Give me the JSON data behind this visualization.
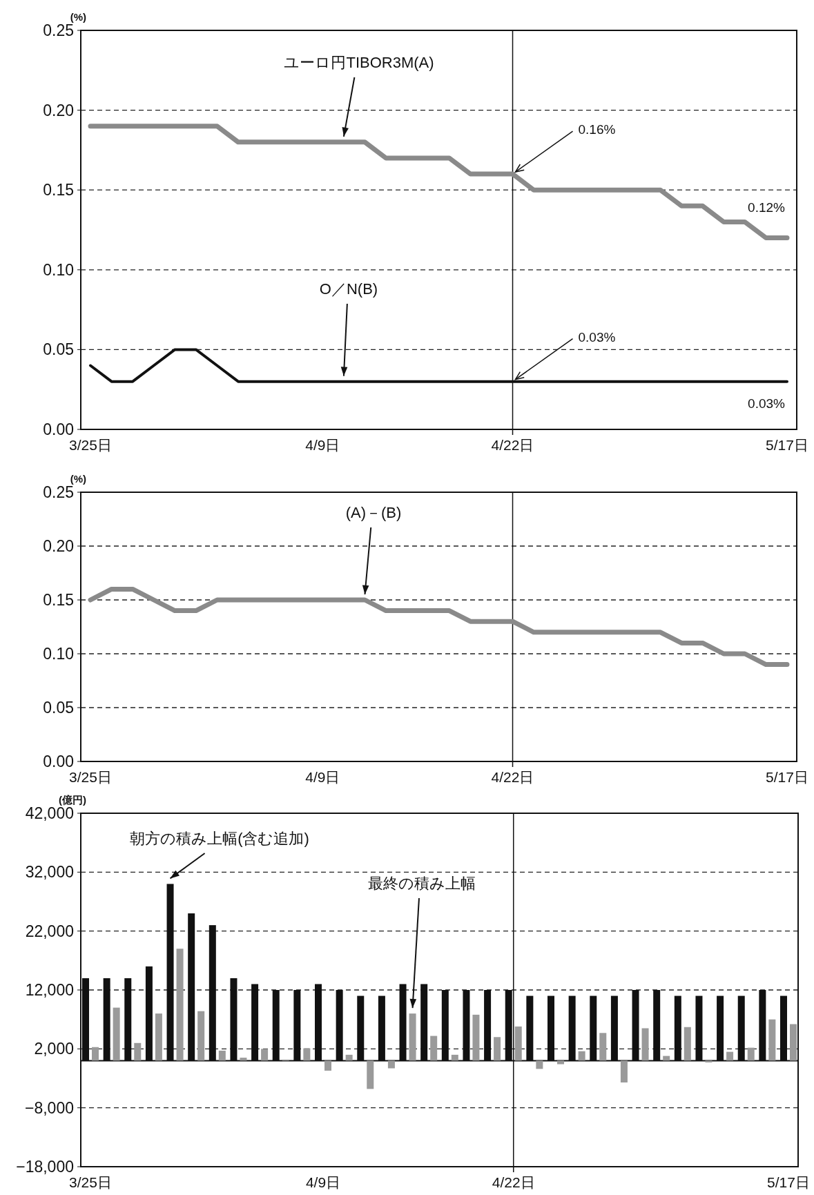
{
  "chart_data": [
    {
      "type": "line",
      "ylabel": "(%)",
      "categories": [
        "3/25日",
        null,
        null,
        null,
        null,
        null,
        null,
        null,
        null,
        null,
        null,
        "4/9日",
        null,
        null,
        null,
        null,
        null,
        null,
        null,
        null,
        "4/22日",
        null,
        null,
        null,
        null,
        null,
        null,
        null,
        null,
        null,
        null,
        null,
        null,
        "5/17日"
      ],
      "ylim": [
        0,
        0.25
      ],
      "yticks": [
        {
          "value": 0,
          "label": "0.00"
        },
        {
          "value": 0.05,
          "label": "0.05"
        },
        {
          "value": 0.1,
          "label": "0.10"
        },
        {
          "value": 0.15,
          "label": "0.15"
        },
        {
          "value": 0.2,
          "label": "0.20"
        },
        {
          "value": 0.25,
          "label": "0.25"
        }
      ],
      "grid": "y",
      "series": [
        {
          "name": "ユーロ円TIBOR3M(A)",
          "color": "#8a8a8a",
          "values": [
            0.19,
            0.19,
            0.19,
            0.19,
            0.19,
            0.19,
            0.19,
            0.18,
            0.18,
            0.18,
            0.18,
            0.18,
            0.18,
            0.18,
            0.17,
            0.17,
            0.17,
            0.17,
            0.16,
            0.16,
            0.16,
            0.15,
            0.15,
            0.15,
            0.15,
            0.15,
            0.15,
            0.15,
            0.14,
            0.14,
            0.13,
            0.13,
            0.12,
            0.12
          ]
        },
        {
          "name": "O／N(B)",
          "color": "#111111",
          "values": [
            0.04,
            0.03,
            0.03,
            0.04,
            0.05,
            0.05,
            0.04,
            0.03,
            0.03,
            0.03,
            0.03,
            0.03,
            0.03,
            0.03,
            0.03,
            0.03,
            0.03,
            0.03,
            0.03,
            0.03,
            0.03,
            0.03,
            0.03,
            0.03,
            0.03,
            0.03,
            0.03,
            0.03,
            0.03,
            0.03,
            0.03,
            0.03,
            0.03,
            0.03
          ]
        }
      ],
      "ref_lines": [
        {
          "axis": "x",
          "value": "4/22日",
          "color": "#111111"
        }
      ],
      "annotations": [
        {
          "text": "0.16%",
          "x": "4/22日",
          "y": 0.16
        },
        {
          "text": "0.03%",
          "x": "4/22日",
          "y": 0.03
        },
        {
          "text": "0.12%",
          "x": "5/17日",
          "y": 0.12
        },
        {
          "text": "0.03%",
          "x": "5/17日",
          "y": 0.03
        }
      ]
    },
    {
      "type": "line",
      "ylabel": "(%)",
      "categories": [
        "3/25日",
        null,
        null,
        null,
        null,
        null,
        null,
        null,
        null,
        null,
        null,
        "4/9日",
        null,
        null,
        null,
        null,
        null,
        null,
        null,
        null,
        "4/22日",
        null,
        null,
        null,
        null,
        null,
        null,
        null,
        null,
        null,
        null,
        null,
        null,
        "5/17日"
      ],
      "ylim": [
        0,
        0.25
      ],
      "yticks": [
        {
          "value": 0,
          "label": "0.00"
        },
        {
          "value": 0.05,
          "label": "0.05"
        },
        {
          "value": 0.1,
          "label": "0.10"
        },
        {
          "value": 0.15,
          "label": "0.15"
        },
        {
          "value": 0.2,
          "label": "0.20"
        },
        {
          "value": 0.25,
          "label": "0.25"
        }
      ],
      "grid": "y",
      "series": [
        {
          "name": "(A)－(B)",
          "color": "#8a8a8a",
          "values": [
            0.15,
            0.16,
            0.16,
            0.15,
            0.14,
            0.14,
            0.15,
            0.15,
            0.15,
            0.15,
            0.15,
            0.15,
            0.15,
            0.15,
            0.14,
            0.14,
            0.14,
            0.14,
            0.13,
            0.13,
            0.13,
            0.12,
            0.12,
            0.12,
            0.12,
            0.12,
            0.12,
            0.12,
            0.11,
            0.11,
            0.1,
            0.1,
            0.09,
            0.09
          ]
        }
      ],
      "ref_lines": [
        {
          "axis": "x",
          "value": "4/22日",
          "color": "#111111"
        }
      ]
    },
    {
      "type": "bar",
      "ylabel": "(億円)",
      "categories": [
        "3/25日",
        null,
        null,
        null,
        null,
        null,
        null,
        null,
        null,
        null,
        null,
        "4/9日",
        null,
        null,
        null,
        null,
        null,
        null,
        null,
        null,
        "4/22日",
        null,
        null,
        null,
        null,
        null,
        null,
        null,
        null,
        null,
        null,
        null,
        null,
        "5/17日"
      ],
      "ylim": [
        -18000,
        42000
      ],
      "yticks": [
        {
          "value": -18000,
          "label": "−18,000"
        },
        {
          "value": -8000,
          "label": "−8,000"
        },
        {
          "value": 2000,
          "label": "2,000"
        },
        {
          "value": 12000,
          "label": "12,000"
        },
        {
          "value": 22000,
          "label": "22,000"
        },
        {
          "value": 32000,
          "label": "32,000"
        },
        {
          "value": 42000,
          "label": "42,000"
        }
      ],
      "grid": "y",
      "series": [
        {
          "name": "朝方の積み上幅(含む追加)",
          "color": "#111111",
          "values": [
            14000,
            14000,
            14000,
            16000,
            30000,
            25000,
            23000,
            14000,
            13000,
            12000,
            12000,
            13000,
            12000,
            11000,
            11000,
            13000,
            13000,
            12000,
            12000,
            12000,
            12000,
            11000,
            11000,
            11000,
            11000,
            11000,
            12000,
            12000,
            11000,
            11000,
            11000,
            11000,
            12000,
            11000
          ]
        },
        {
          "name": "最終の積み上幅",
          "color": "#9a9a9a",
          "values": [
            2300,
            9000,
            3000,
            8000,
            19000,
            8400,
            1700,
            500,
            2000,
            0,
            2100,
            -1700,
            1000,
            -4800,
            -1300,
            8000,
            4200,
            1000,
            7800,
            4000,
            5800,
            -1400,
            -600,
            1600,
            4700,
            -3700,
            5500,
            800,
            5700,
            -300,
            1500,
            2200,
            7000,
            6200
          ]
        }
      ],
      "ref_lines": [
        {
          "axis": "x",
          "value": "4/22日",
          "color": "#111111"
        }
      ]
    }
  ]
}
